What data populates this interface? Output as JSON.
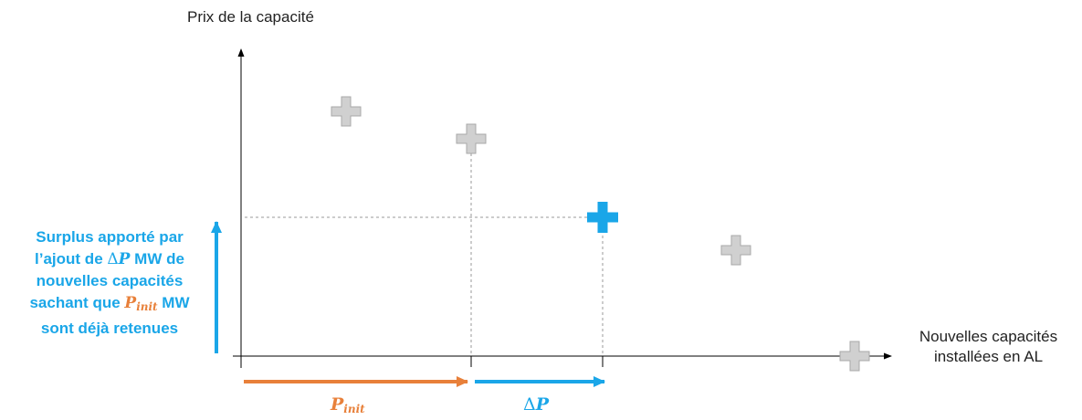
{
  "diagram": {
    "y_axis_title": "Prix de la capacité",
    "x_axis_title_line1": "Nouvelles capacités",
    "x_axis_title_line2": "installées en AL",
    "surplus": {
      "line1": "Surplus apporté par",
      "line2_pre": "l’ajout de ",
      "line2_delta": "Δ",
      "line2_p": "P",
      "line2_post": " MW de",
      "line3": "nouvelles capacités",
      "line4_pre": "sachant que ",
      "line4_p": "P",
      "line4_sub": "init",
      "line4_post": " MW",
      "line5": "sont déjà retenues"
    },
    "pinit_label_p": "P",
    "pinit_label_sub": "init",
    "dp_label_delta": "Δ",
    "dp_label_p": "P",
    "colors": {
      "blue": "#1aa6e8",
      "orange": "#e8803a",
      "gray_marker": "#d0d0d0",
      "axis": "#000000"
    }
  }
}
